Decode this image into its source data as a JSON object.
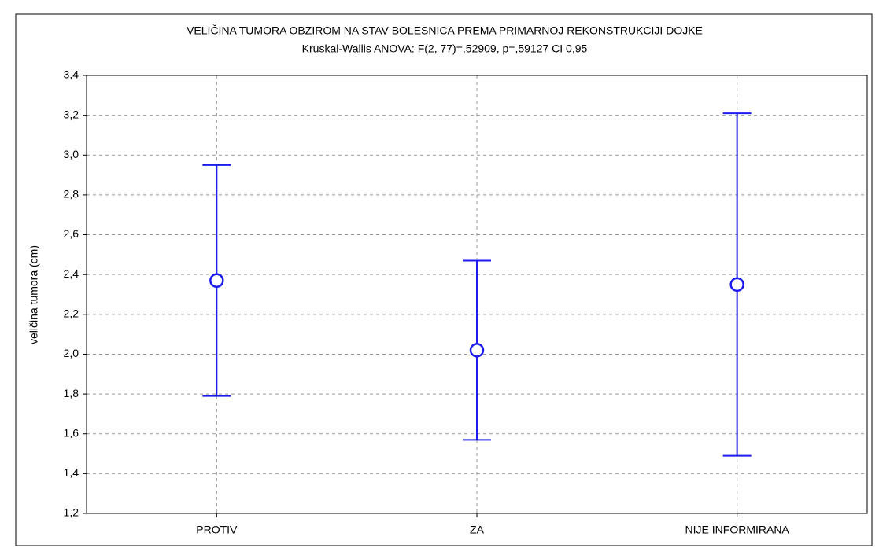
{
  "chart_data": {
    "type": "errorbar",
    "title": "VELIČINA TUMORA OBZIROM NA STAV BOLESNICA PREMA PRIMARNOJ REKONSTRUKCIJI DOJKE",
    "subtitle": "Kruskal-Wallis ANOVA: F(2, 77)=,52909, p=,59127 CI 0,95",
    "y_label": "veličina tumora (cm)",
    "categories": [
      "PROTIV",
      "ZA",
      "NIJE INFORMIRANA"
    ],
    "values": [
      2.37,
      2.02,
      2.35
    ],
    "errors": [
      0.58,
      0.45,
      0.86
    ],
    "color": "#1c1cf0",
    "grid": true,
    "ylim": [
      1.2,
      3.4
    ],
    "yticks": [
      {
        "value": 1.2,
        "label": "1,2"
      },
      {
        "value": 1.4,
        "label": "1,4"
      },
      {
        "value": 1.6,
        "label": "1,6"
      },
      {
        "value": 1.8,
        "label": "1,8"
      },
      {
        "value": 2.0,
        "label": "2,0"
      },
      {
        "value": 2.2,
        "label": "2,2"
      },
      {
        "value": 2.4,
        "label": "2,4"
      },
      {
        "value": 2.6,
        "label": "2,6"
      },
      {
        "value": 2.8,
        "label": "2,8"
      },
      {
        "value": 3.0,
        "label": "3,0"
      },
      {
        "value": 3.2,
        "label": "3,2"
      },
      {
        "value": 3.4,
        "label": "3,4"
      }
    ]
  }
}
